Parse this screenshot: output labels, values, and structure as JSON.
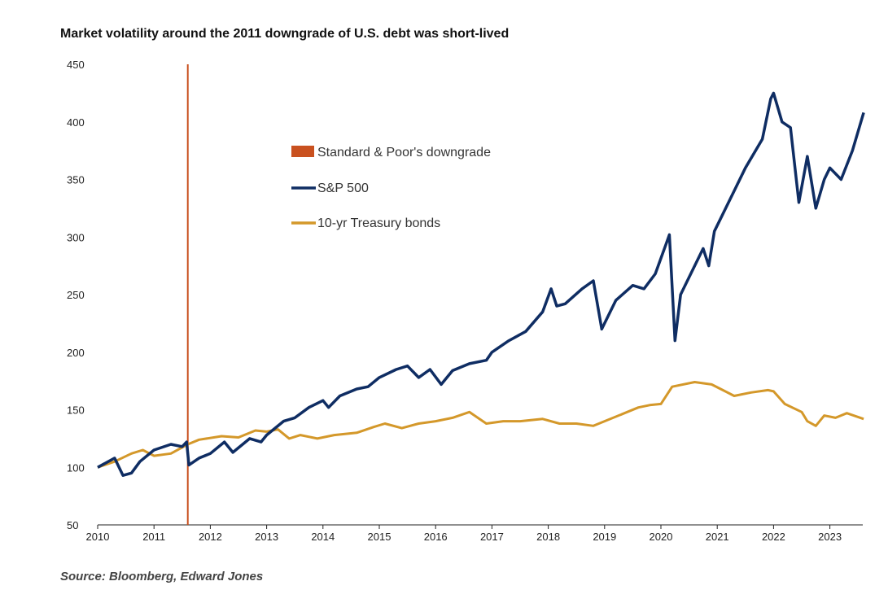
{
  "chart_data": {
    "type": "line",
    "title": "Market volatility around the 2011 downgrade of U.S. debt was short-lived",
    "source": "Source: Bloomberg, Edward Jones",
    "xlabel": "",
    "ylabel": "",
    "xlim": [
      2010,
      2023.6
    ],
    "ylim": [
      50,
      450
    ],
    "yticks": [
      50,
      100,
      150,
      200,
      250,
      300,
      350,
      400,
      450
    ],
    "xticks": [
      2010,
      2011,
      2012,
      2013,
      2014,
      2015,
      2016,
      2017,
      2018,
      2019,
      2020,
      2021,
      2022,
      2023
    ],
    "legend_position": "top-center",
    "grid": false,
    "event": {
      "name": "Standard & Poor's downgrade",
      "x": 2011.6,
      "color": "#c9511f"
    },
    "series": [
      {
        "name": "S&P 500",
        "color": "#0f2d63",
        "x": [
          2010.0,
          2010.3,
          2010.45,
          2010.6,
          2010.75,
          2011.0,
          2011.3,
          2011.5,
          2011.58,
          2011.62,
          2011.8,
          2012.0,
          2012.25,
          2012.4,
          2012.7,
          2012.9,
          2013.0,
          2013.3,
          2013.5,
          2013.75,
          2014.0,
          2014.1,
          2014.3,
          2014.6,
          2014.8,
          2015.0,
          2015.3,
          2015.5,
          2015.7,
          2015.9,
          2016.1,
          2016.3,
          2016.6,
          2016.9,
          2017.0,
          2017.3,
          2017.6,
          2017.9,
          2018.05,
          2018.15,
          2018.3,
          2018.6,
          2018.8,
          2018.95,
          2019.2,
          2019.5,
          2019.7,
          2019.9,
          2020.1,
          2020.15,
          2020.25,
          2020.35,
          2020.6,
          2020.75,
          2020.85,
          2020.95,
          2021.3,
          2021.5,
          2021.8,
          2021.95,
          2022.0,
          2022.15,
          2022.3,
          2022.45,
          2022.6,
          2022.75,
          2022.9,
          2023.0,
          2023.2,
          2023.4,
          2023.6
        ],
        "values": [
          100,
          108,
          93,
          95,
          105,
          115,
          120,
          118,
          122,
          102,
          108,
          112,
          122,
          113,
          125,
          122,
          128,
          140,
          143,
          152,
          158,
          152,
          162,
          168,
          170,
          178,
          185,
          188,
          178,
          185,
          172,
          184,
          190,
          193,
          200,
          210,
          218,
          235,
          255,
          240,
          242,
          255,
          262,
          220,
          245,
          258,
          255,
          268,
          295,
          302,
          210,
          250,
          275,
          290,
          275,
          305,
          340,
          360,
          385,
          420,
          425,
          400,
          395,
          330,
          370,
          325,
          350,
          360,
          350,
          375,
          408
        ]
      },
      {
        "name": "10-yr Treasury bonds",
        "color": "#d4982a",
        "x": [
          2010.0,
          2010.3,
          2010.6,
          2010.8,
          2011.0,
          2011.3,
          2011.6,
          2011.8,
          2012.2,
          2012.5,
          2012.8,
          2013.0,
          2013.2,
          2013.4,
          2013.6,
          2013.9,
          2014.2,
          2014.6,
          2014.9,
          2015.1,
          2015.4,
          2015.7,
          2016.0,
          2016.3,
          2016.6,
          2016.9,
          2017.2,
          2017.5,
          2017.9,
          2018.2,
          2018.5,
          2018.8,
          2019.0,
          2019.3,
          2019.6,
          2019.8,
          2020.0,
          2020.2,
          2020.6,
          2020.9,
          2021.1,
          2021.3,
          2021.6,
          2021.9,
          2022.0,
          2022.2,
          2022.5,
          2022.6,
          2022.75,
          2022.9,
          2023.1,
          2023.3,
          2023.6
        ],
        "values": [
          100,
          105,
          112,
          115,
          110,
          112,
          120,
          124,
          127,
          126,
          132,
          131,
          133,
          125,
          128,
          125,
          128,
          130,
          135,
          138,
          134,
          138,
          140,
          143,
          148,
          138,
          140,
          140,
          142,
          138,
          138,
          136,
          140,
          146,
          152,
          154,
          155,
          170,
          174,
          172,
          167,
          162,
          165,
          167,
          166,
          155,
          148,
          140,
          136,
          145,
          143,
          147,
          142
        ]
      }
    ]
  }
}
